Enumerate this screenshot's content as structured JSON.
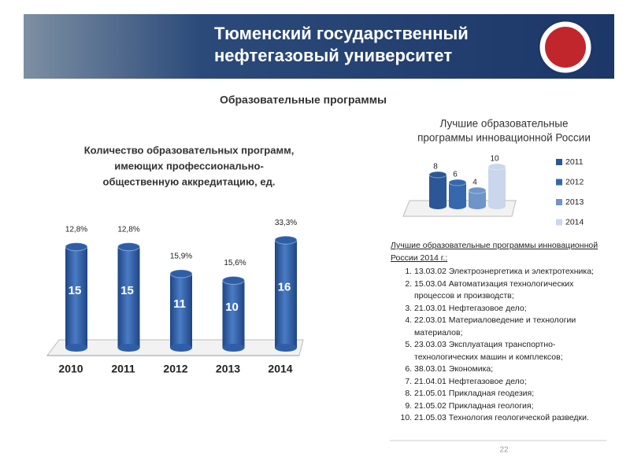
{
  "header": {
    "lines": [
      "Тюменский государственный",
      "нефтегазовый университет"
    ]
  },
  "heading": "Образовательные программы",
  "chart_data": [
    {
      "type": "bar",
      "title": [
        "Количество образовательных программ,",
        "имеющих профессионально-",
        "общественную аккредитацию, ед."
      ],
      "categories": [
        "2010",
        "2011",
        "2012",
        "2013",
        "2014"
      ],
      "values": [
        15,
        15,
        11,
        10,
        16
      ],
      "share_values": [
        12.8,
        12.8,
        15.9,
        15.6,
        33.3
      ],
      "share_value_labels": [
        "12,8%",
        "12,8%",
        "15,9%",
        "15,6%",
        "33,3%"
      ],
      "color": "#2f5ea8",
      "ylim": [
        0,
        18
      ]
    },
    {
      "type": "bar",
      "title": [
        "Лучшие образовательные",
        "программы инновационной России"
      ],
      "categories": [
        "2011",
        "2012",
        "2013",
        "2014"
      ],
      "values": [
        8,
        6,
        4,
        10
      ],
      "colors": [
        "#2c5796",
        "#3767ad",
        "#6f94c9",
        "#c9d6eb"
      ],
      "ylim": [
        0,
        12
      ],
      "legend": "right"
    }
  ],
  "list": {
    "title": "Лучшие образовательные программы инновационной России 2014 г.:",
    "items": [
      "13.03.02 Электроэнергетика и электротехника;",
      "15.03.04 Автоматизация технологических процессов и производств;",
      "21.03.01 Нефтегазовое дело;",
      "22.03.01 Материаловедение и технологии материалов;",
      "23.03.03 Эксплуатация транспортно-технологических машин и комплексов;",
      "38.03.01 Экономика;",
      "21.04.01 Нефтегазовое дело;",
      "21.05.01 Прикладная геодезия;",
      "21.05.02 Прикладная геология;",
      "21.05.03 Технология геологической разведки."
    ]
  },
  "page_number": "22"
}
